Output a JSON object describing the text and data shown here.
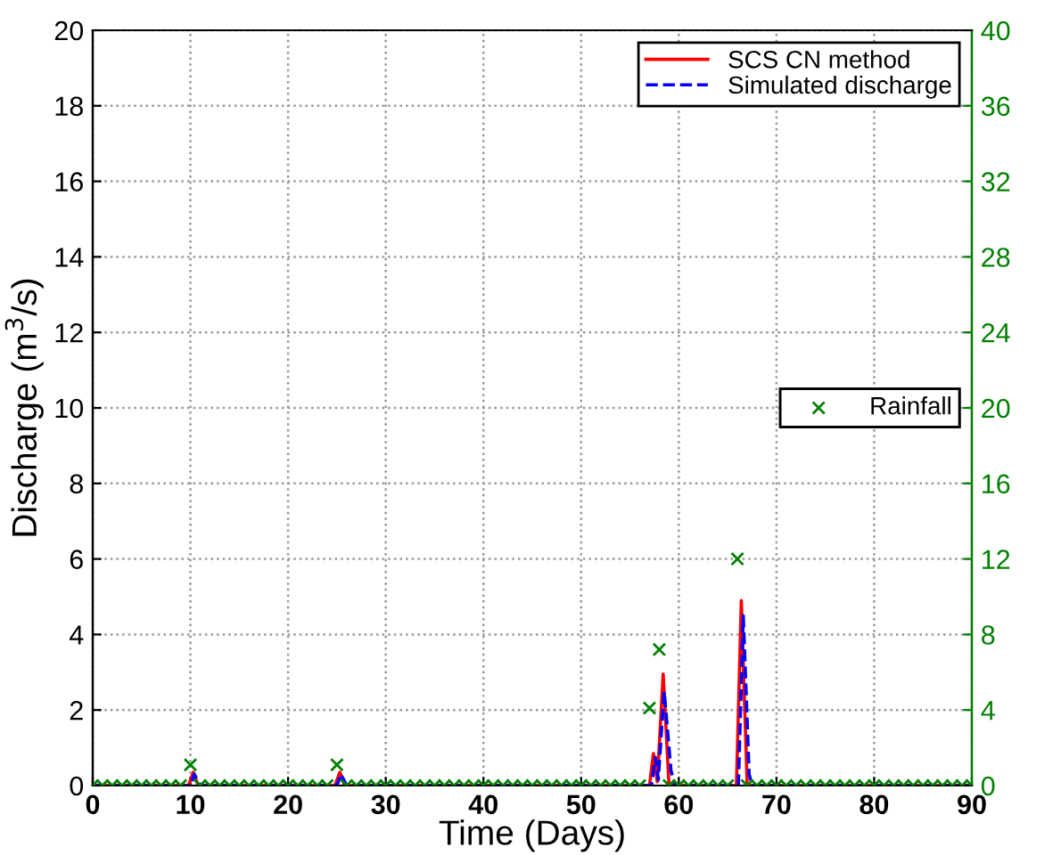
{
  "chart_data": {
    "type": "line",
    "xlabel": "Time (Days)",
    "ylabel": "Discharge (m$^{3}$/s)",
    "xlim": [
      0,
      90
    ],
    "xticks": [
      0,
      10,
      20,
      30,
      40,
      50,
      60,
      70,
      80,
      90
    ],
    "ylim": [
      0,
      20
    ],
    "yticks": [
      0,
      2,
      4,
      6,
      8,
      10,
      12,
      14,
      16,
      18,
      20
    ],
    "y2lim": [
      0,
      40
    ],
    "y2ticks": [
      0,
      4,
      8,
      12,
      16,
      20,
      24,
      28,
      32,
      36,
      40
    ],
    "grid": true,
    "legend": "top right",
    "series": [
      {
        "name": "SCS CN method",
        "color": "#ff0000",
        "line_style": "solid",
        "x": [
          0,
          9.8,
          10.3,
          10.8,
          24.8,
          25.3,
          25.8,
          57,
          57.4,
          57.8,
          58.4,
          59,
          59.3,
          65.9,
          66.4,
          67,
          90
        ],
        "values": [
          0,
          0,
          0.35,
          0,
          0,
          0.35,
          0,
          0,
          0.85,
          0.1,
          2.95,
          0,
          0,
          0,
          4.9,
          0,
          0
        ]
      },
      {
        "name": "Simulated discharge",
        "color": "#0000ff",
        "line_style": "dashed",
        "x": [
          0,
          10,
          10.4,
          11,
          25,
          25.4,
          26,
          57.2,
          57.6,
          57.9,
          58.5,
          59.2,
          59.6,
          66.1,
          66.6,
          67.2,
          67.5,
          90
        ],
        "values": [
          0,
          0,
          0.3,
          0,
          0,
          0.3,
          0,
          0,
          0.75,
          0.15,
          2.5,
          0.4,
          0,
          0,
          4.5,
          0.3,
          0,
          0
        ]
      },
      {
        "name": "Rainfall",
        "type": "scatter",
        "axis": "y2",
        "marker": "cross",
        "color": "#008000",
        "x": [
          0,
          1,
          2,
          3,
          4,
          5,
          6,
          7,
          8,
          9,
          10,
          11,
          12,
          13,
          14,
          15,
          16,
          17,
          18,
          19,
          20,
          21,
          22,
          23,
          24,
          25,
          26,
          27,
          28,
          29,
          30,
          31,
          32,
          33,
          34,
          35,
          36,
          37,
          38,
          39,
          40,
          41,
          42,
          43,
          44,
          45,
          46,
          47,
          48,
          49,
          50,
          51,
          52,
          53,
          54,
          55,
          56,
          57,
          58,
          59,
          60,
          61,
          62,
          63,
          64,
          65,
          66,
          67,
          68,
          69,
          70,
          71,
          72,
          73,
          74,
          75,
          76,
          77,
          78,
          79,
          80,
          81,
          82,
          83,
          84,
          85,
          86,
          87,
          88,
          89,
          90
        ],
        "values": [
          0,
          0,
          0,
          0,
          0,
          0,
          0,
          0,
          0,
          0,
          1.1,
          0,
          0,
          0,
          0,
          0,
          0,
          0,
          0,
          0,
          0,
          0,
          0,
          0,
          0,
          1.1,
          0,
          0,
          0,
          0,
          0,
          0,
          0,
          0,
          0,
          0,
          0,
          0,
          0,
          0,
          0,
          0,
          0,
          0,
          0,
          0,
          0,
          0,
          0,
          0,
          0,
          0,
          0,
          0,
          0,
          0,
          0,
          4.1,
          7.2,
          0,
          0,
          0,
          0,
          0,
          0,
          0,
          12,
          0,
          0,
          0,
          0,
          0,
          0,
          0,
          0,
          0,
          0,
          0,
          0,
          0,
          0,
          0,
          0,
          0,
          0,
          0,
          0,
          0,
          0,
          0,
          0
        ]
      }
    ]
  }
}
